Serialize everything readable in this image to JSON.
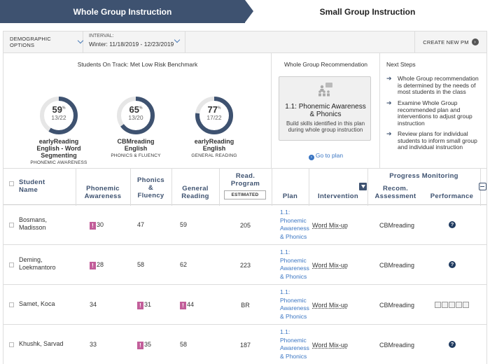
{
  "tabs": {
    "active": "Whole Group Instruction",
    "inactive": "Small Group Instruction"
  },
  "toolbar": {
    "demographic_label": "DEMOGRAPHIC OPTIONS",
    "interval_label": "INTERVAL:",
    "interval_value": "Winter: 11/18/2019 - 12/23/2019",
    "create_pm_label": "CREATE NEW PM"
  },
  "on_track": {
    "title": "Students On Track: Met Low Risk Benchmark",
    "measures": [
      {
        "percent": 59,
        "percent_text": "59",
        "fraction": "13/22",
        "name_line1": "earlyReading",
        "name_line2": "English - Word",
        "name_line3": "Segmenting",
        "subtitle": "PHONEMIC AWARENESS"
      },
      {
        "percent": 65,
        "percent_text": "65",
        "fraction": "13/20",
        "name_line1": "CBMreading",
        "name_line2": "English",
        "name_line3": "",
        "subtitle": "PHONICS & FLUENCY"
      },
      {
        "percent": 77,
        "percent_text": "77",
        "fraction": "17/22",
        "name_line1": "earlyReading",
        "name_line2": "English",
        "name_line3": "",
        "subtitle": "GENERAL READING"
      }
    ],
    "percent_sign": "%"
  },
  "recommendation": {
    "title": "Whole Group Recommendation",
    "card_title_line1": "1.1: Phonemic Awareness",
    "card_title_line2": "& Phonics",
    "card_desc_line1": "Build skills identified in this plan",
    "card_desc_line2": "during whole group instruction",
    "goto_label": "Go to plan"
  },
  "next_steps": {
    "title": "Next Steps",
    "steps": [
      {
        "l1": "Whole Group recommendation",
        "l2": "is determined by the needs of",
        "l3": "most students in the class"
      },
      {
        "l1": "Examine Whole Group",
        "l2": "recommended plan and",
        "l3": "interventions to adjust group",
        "l4": "instruction"
      },
      {
        "l1": "Review plans for individual",
        "l2": "students to inform small group",
        "l3": "and individual instruction"
      }
    ]
  },
  "table": {
    "headers": {
      "student_l1": "Student",
      "student_l2": "Name",
      "phonemic_l1": "Phonemic",
      "phonemic_l2": "Awareness",
      "phonics_l1": "Phonics",
      "phonics_l2": "&",
      "phonics_l3": "Fluency",
      "general_l1": "General",
      "general_l2": "Reading",
      "read_l1": "Read.",
      "read_l2": "Program",
      "estimated": "ESTIMATED",
      "plan": "Plan",
      "intervention": "Intervention",
      "progress_monitoring": "Progress Monitoring",
      "recom_l1": "Recom.",
      "recom_l2": "Assessment",
      "performance": "Performance"
    },
    "rows": [
      {
        "name_l1": "Bosmans,",
        "name_l2": "Madisson",
        "phonemic": "30",
        "phonemic_flag": true,
        "phonics": "47",
        "phonics_flag": false,
        "general": "59",
        "general_flag": false,
        "read": "205",
        "plan_l1": "1.1:",
        "plan_l2": "Phonemic",
        "plan_l3": "Awareness",
        "plan_l4": "& Phonics",
        "intervention": "Word Mix-up",
        "assessment": "CBMreading",
        "performance": "help"
      },
      {
        "name_l1": "Deming,",
        "name_l2": "Loekmantoro",
        "phonemic": "28",
        "phonemic_flag": true,
        "phonics": "58",
        "phonics_flag": false,
        "general": "62",
        "general_flag": false,
        "read": "223",
        "plan_l1": "1.1:",
        "plan_l2": "Phonemic",
        "plan_l3": "Awareness",
        "plan_l4": "& Phonics",
        "intervention": "Word Mix-up",
        "assessment": "CBMreading",
        "performance": "help"
      },
      {
        "name_l1": "Samet, Koca",
        "name_l2": "",
        "phonemic": "34",
        "phonemic_flag": false,
        "phonics": "31",
        "phonics_flag": true,
        "general": "44",
        "general_flag": true,
        "read": "BR",
        "plan_l1": "1.1:",
        "plan_l2": "Phonemic",
        "plan_l3": "Awareness",
        "plan_l4": "& Phonics",
        "intervention": "Word Mix-up",
        "assessment": "CBMreading",
        "performance": "boxes"
      },
      {
        "name_l1": "Khushk, Sarvad",
        "name_l2": "",
        "phonemic": "33",
        "phonemic_flag": false,
        "phonics": "35",
        "phonics_flag": true,
        "general": "58",
        "general_flag": false,
        "read": "187",
        "plan_l1": "1.1:",
        "plan_l2": "Phonemic",
        "plan_l3": "Awareness",
        "plan_l4": "& Phonics",
        "intervention": "Word Mix-up",
        "assessment": "CBMreading",
        "performance": "help"
      }
    ]
  },
  "icons": {
    "flag_glyph": "!",
    "help_glyph": "?",
    "goto_glyph": "›",
    "arrow_glyph": "›",
    "step_glyph": "➔"
  },
  "colors": {
    "primary": "#3e5270",
    "ring_fill": "#3e5270",
    "ring_track": "#e6e6e6",
    "link": "#3b76c3",
    "flag": "#c25e9a"
  }
}
